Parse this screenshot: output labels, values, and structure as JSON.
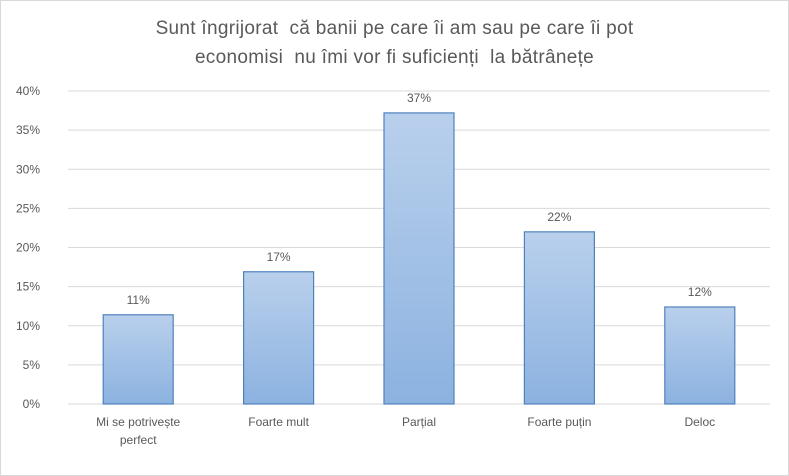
{
  "chart_data": {
    "type": "bar",
    "title": {
      "line1": "Sunt îngrijorat  că banii pe care îi am sau pe care îi pot",
      "line2": "economisi  nu îmi vor fi suficienți  la bătrânețe"
    },
    "categories": [
      [
        "Mi se potrivește",
        "perfect"
      ],
      [
        "Foarte mult"
      ],
      [
        "Parțial"
      ],
      [
        "Foarte puțin"
      ],
      [
        "Deloc"
      ]
    ],
    "values": [
      11.4,
      16.9,
      37.2,
      22.0,
      12.4
    ],
    "data_labels": [
      "11%",
      "17%",
      "37%",
      "22%",
      "12%"
    ],
    "y_ticks": [
      "0%",
      "5%",
      "10%",
      "15%",
      "20%",
      "25%",
      "30%",
      "35%",
      "40%"
    ],
    "ylim": [
      0,
      40
    ],
    "grid": true,
    "legend": "none",
    "colors": {
      "bar_top": "#b9d0ec",
      "bar_bottom": "#8cb2e0",
      "bar_border": "#4f81bd",
      "grid": "#d9d9d9",
      "text": "#595959"
    }
  }
}
